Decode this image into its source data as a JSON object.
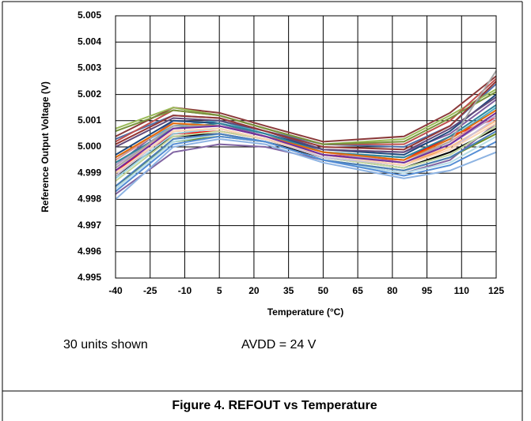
{
  "chart_data": {
    "type": "line",
    "ylabel": "Reference Output Voltage (V)",
    "xlabel": "Temperature (°C)",
    "annotations": [
      "30 units shown",
      "AVDD = 24 V"
    ],
    "caption": "Figure 4. REFOUT vs Temperature",
    "x": [
      -40,
      -15,
      5,
      25,
      50,
      85,
      105,
      125
    ],
    "xlim": [
      -40,
      125
    ],
    "xticks": [
      -40,
      -25,
      -10,
      5,
      20,
      35,
      50,
      65,
      80,
      95,
      110,
      125
    ],
    "ylim": [
      4.995,
      5.005
    ],
    "yticks": [
      4.995,
      4.996,
      4.997,
      4.998,
      4.999,
      {
        "value": 5,
        "label": "5.000"
      },
      5.001,
      5.002,
      5.003,
      5.004,
      5.005
    ],
    "grid": true,
    "series": [
      {
        "color": "#8b3a3a",
        "values": [
          5.0004,
          5.0015,
          5.0013,
          5.0008,
          5.0002,
          5.0004,
          5.0013,
          5.0027
        ]
      },
      {
        "color": "#4f6fa8",
        "values": [
          5.0003,
          5.0012,
          5.0011,
          5.0006,
          5.0001,
          5.0,
          5.0008,
          5.0024
        ]
      },
      {
        "color": "#9bbb59",
        "values": [
          5.0007,
          5.0015,
          5.0012,
          5.0007,
          5.0001,
          5.0003,
          5.0012,
          5.0022
        ]
      },
      {
        "color": "#7f5fa0",
        "values": [
          4.9993,
          5.001,
          5.0009,
          5.0004,
          4.9999,
          4.9998,
          5.0005,
          5.0018
        ]
      },
      {
        "color": "#4bacc6",
        "values": [
          4.9996,
          5.0008,
          5.001,
          5.0005,
          4.9998,
          4.9996,
          5.0003,
          5.0015
        ]
      },
      {
        "color": "#f79646",
        "values": [
          4.999,
          5.0006,
          5.0007,
          5.0003,
          4.9997,
          4.9993,
          5.0,
          5.001
        ]
      },
      {
        "color": "#ff0000",
        "values": [
          4.9991,
          5.0005,
          5.0006,
          5.0003,
          4.9997,
          4.9995,
          5.0004,
          5.0011
        ]
      },
      {
        "color": "#000000",
        "values": [
          4.9989,
          5.0004,
          5.0005,
          5.0002,
          4.9996,
          4.9992,
          4.9998,
          5.0007
        ]
      },
      {
        "color": "#8064a2",
        "values": [
          4.9982,
          4.9998,
          5.0001,
          5.0,
          4.9995,
          4.999,
          4.9995,
          5.0009
        ]
      },
      {
        "color": "#6b8e23",
        "values": [
          4.9985,
          5.0002,
          5.0004,
          5.0002,
          4.9995,
          4.9991,
          4.9996,
          5.0005
        ]
      },
      {
        "color": "#8db3e2",
        "values": [
          4.998,
          5.0,
          5.0003,
          5.0001,
          4.9994,
          4.9988,
          4.9991,
          4.9998
        ]
      },
      {
        "color": "#c0504d",
        "values": [
          5.0002,
          5.0014,
          5.0012,
          5.0007,
          5.0001,
          5.0001,
          5.001,
          5.0026
        ]
      },
      {
        "color": "#1f497d",
        "values": [
          4.9997,
          5.001,
          5.0009,
          5.0005,
          4.9999,
          4.9997,
          5.0006,
          5.002
        ]
      },
      {
        "color": "#d99694",
        "values": [
          4.9995,
          5.0009,
          5.0008,
          5.0004,
          4.9998,
          4.9995,
          5.0002,
          5.0013
        ]
      },
      {
        "color": "#b3a2c7",
        "values": [
          4.9993,
          5.0008,
          5.0008,
          5.0004,
          4.9998,
          4.9994,
          5.0001,
          5.0012
        ]
      },
      {
        "color": "#93cddd",
        "values": [
          4.9988,
          5.0005,
          5.0007,
          5.0003,
          4.9996,
          4.9992,
          4.9997,
          5.0008
        ]
      },
      {
        "color": "#fac090",
        "values": [
          4.9992,
          5.0007,
          5.0008,
          5.0004,
          4.9997,
          4.9994,
          5.0,
          5.001
        ]
      },
      {
        "color": "#77933c",
        "values": [
          5.0006,
          5.0014,
          5.0012,
          5.0007,
          5.0001,
          5.0002,
          5.0011,
          5.0021
        ]
      },
      {
        "color": "#60497a",
        "values": [
          5.0,
          5.0011,
          5.001,
          5.0006,
          4.9999,
          4.9998,
          5.0007,
          5.0019
        ]
      },
      {
        "color": "#31859c",
        "values": [
          4.9994,
          5.0007,
          5.0009,
          5.0005,
          4.9998,
          4.9996,
          5.0004,
          5.0016
        ]
      },
      {
        "color": "#e46c0a",
        "values": [
          4.9996,
          5.0009,
          5.0008,
          5.0004,
          4.9998,
          4.9995,
          5.0003,
          5.0014
        ]
      },
      {
        "color": "#953735",
        "values": [
          5.0001,
          5.0012,
          5.0011,
          5.0006,
          5.0,
          4.9999,
          5.0008,
          5.0025
        ]
      },
      {
        "color": "#c3d69b",
        "values": [
          4.9987,
          5.0004,
          5.0006,
          5.0003,
          4.9996,
          4.9992,
          4.9997,
          5.0008
        ]
      },
      {
        "color": "#ccc1da",
        "values": [
          4.9989,
          5.0006,
          5.0007,
          5.0003,
          4.9996,
          4.9993,
          4.9999,
          5.0011
        ]
      },
      {
        "color": "#b7dee8",
        "values": [
          4.9984,
          5.0002,
          5.0005,
          5.0002,
          4.9995,
          4.999,
          4.9994,
          5.0004
        ]
      },
      {
        "color": "#fcd5b5",
        "values": [
          4.999,
          5.0006,
          5.0007,
          5.0003,
          4.9997,
          4.9993,
          4.9999,
          5.0009
        ]
      },
      {
        "color": "#4a7ebb",
        "values": [
          4.9985,
          5.0003,
          5.0005,
          5.0002,
          4.9995,
          4.9991,
          4.9996,
          5.0006
        ]
      },
      {
        "color": "#a6a6a6",
        "values": [
          4.9992,
          5.0008,
          5.0008,
          5.0004,
          4.9997,
          4.9994,
          5.0002,
          5.0029
        ]
      },
      {
        "color": "#7030a0",
        "values": [
          4.9991,
          5.0007,
          5.0008,
          5.0004,
          4.9997,
          4.9994,
          5.0001,
          5.0013
        ]
      },
      {
        "color": "#558ed5",
        "values": [
          4.9983,
          5.0001,
          5.0004,
          5.0002,
          4.9995,
          4.9989,
          4.9993,
          5.0002
        ]
      }
    ]
  }
}
